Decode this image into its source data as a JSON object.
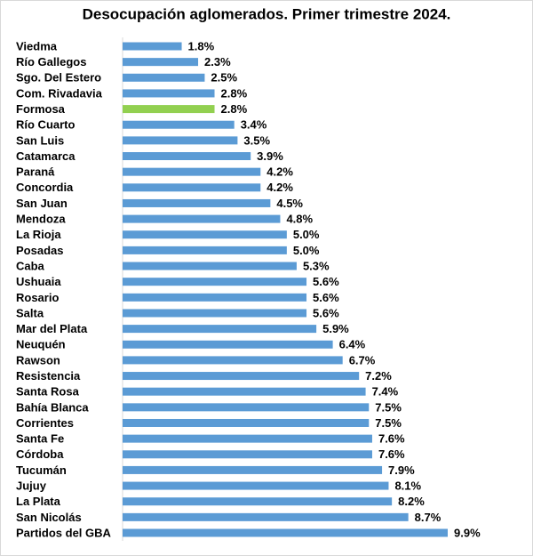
{
  "chart_data": {
    "type": "bar",
    "orientation": "horizontal",
    "title": "Desocupación aglomerados. Primer trimestre 2024.",
    "categories": [
      "Viedma",
      "Río Gallegos",
      "Sgo. Del Estero",
      "Com. Rivadavia",
      "Formosa",
      "Río Cuarto",
      "San Luis",
      "Catamarca",
      "Paraná",
      "Concordia",
      "San Juan",
      "Mendoza",
      "La Rioja",
      "Posadas",
      "Caba",
      "Ushuaia",
      "Rosario",
      "Salta",
      "Mar del Plata",
      "Neuquén",
      "Rawson",
      "Resistencia",
      "Santa Rosa",
      "Bahía Blanca",
      "Corrientes",
      "Santa Fe",
      "Córdoba",
      "Tucumán",
      "Jujuy",
      "La Plata",
      "San Nicolás",
      "Partidos del GBA"
    ],
    "values": [
      1.8,
      2.3,
      2.5,
      2.8,
      2.8,
      3.4,
      3.5,
      3.9,
      4.2,
      4.2,
      4.5,
      4.8,
      5.0,
      5.0,
      5.3,
      5.6,
      5.6,
      5.6,
      5.9,
      6.4,
      6.7,
      7.2,
      7.4,
      7.5,
      7.5,
      7.6,
      7.6,
      7.9,
      8.1,
      8.2,
      8.7,
      9.9
    ],
    "value_labels": [
      "1.8%",
      "2.3%",
      "2.5%",
      "2.8%",
      "2.8%",
      "3.4%",
      "3.5%",
      "3.9%",
      "4.2%",
      "4.2%",
      "4.5%",
      "4.8%",
      "5.0%",
      "5.0%",
      "5.3%",
      "5.6%",
      "5.6%",
      "5.6%",
      "5.9%",
      "6.4%",
      "6.7%",
      "7.2%",
      "7.4%",
      "7.5%",
      "7.5%",
      "7.6%",
      "7.6%",
      "7.9%",
      "8.1%",
      "8.2%",
      "8.7%",
      "9.9%"
    ],
    "colors": [
      "#5b9bd5",
      "#5b9bd5",
      "#5b9bd5",
      "#5b9bd5",
      "#92d050",
      "#5b9bd5",
      "#5b9bd5",
      "#5b9bd5",
      "#5b9bd5",
      "#5b9bd5",
      "#5b9bd5",
      "#5b9bd5",
      "#5b9bd5",
      "#5b9bd5",
      "#5b9bd5",
      "#5b9bd5",
      "#5b9bd5",
      "#5b9bd5",
      "#5b9bd5",
      "#5b9bd5",
      "#5b9bd5",
      "#5b9bd5",
      "#5b9bd5",
      "#5b9bd5",
      "#5b9bd5",
      "#5b9bd5",
      "#5b9bd5",
      "#5b9bd5",
      "#5b9bd5",
      "#5b9bd5",
      "#5b9bd5",
      "#5b9bd5"
    ]
  }
}
